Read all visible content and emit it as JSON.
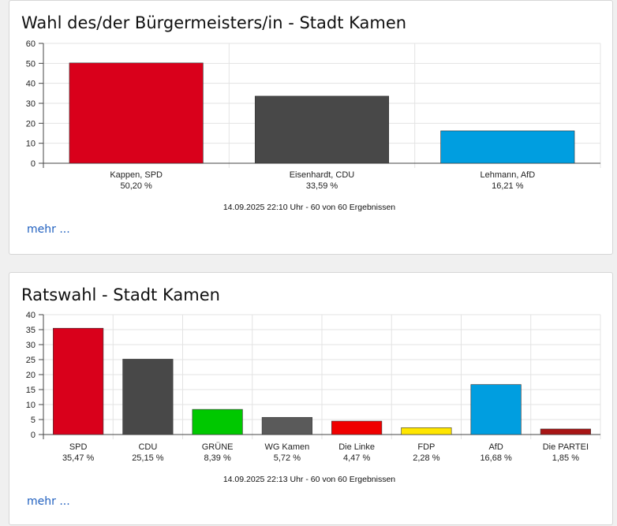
{
  "mayor": {
    "title": "Wahl des/der Bürgermeisters/in - Stadt Kamen",
    "more_label": "mehr ...",
    "timestamp": "14.09.2025 22:10 Uhr - 60 von 60 Ergebnissen"
  },
  "council": {
    "title": "Ratswahl - Stadt Kamen",
    "more_label": "mehr ...",
    "timestamp": "14.09.2025 22:13 Uhr - 60 von 60 Ergebnissen"
  },
  "chart_data": [
    {
      "type": "bar",
      "title": "Wahl des/der Bürgermeisters/in - Stadt Kamen",
      "categories": [
        "Kappen, SPD",
        "Eisenhardt, CDU",
        "Lehmann, AfD"
      ],
      "values": [
        50.2,
        33.59,
        16.21
      ],
      "value_labels": [
        "50,20 %",
        "33,59 %",
        "16,21 %"
      ],
      "colors": [
        "#d9001b",
        "#484848",
        "#009ee0"
      ],
      "ylim": [
        0,
        60
      ],
      "yticks": [
        0,
        10,
        20,
        30,
        40,
        50,
        60
      ],
      "grid": true,
      "note": "14.09.2025 22:10 Uhr - 60 von 60 Ergebnissen"
    },
    {
      "type": "bar",
      "title": "Ratswahl - Stadt Kamen",
      "categories": [
        "SPD",
        "CDU",
        "GRÜNE",
        "WG Kamen",
        "Die Linke",
        "FDP",
        "AfD",
        "Die PARTEI"
      ],
      "values": [
        35.47,
        25.15,
        8.39,
        5.72,
        4.47,
        2.28,
        16.68,
        1.85
      ],
      "value_labels": [
        "35,47 %",
        "25,15 %",
        "8,39 %",
        "5,72 %",
        "4,47 %",
        "2,28 %",
        "16,68 %",
        "1,85 %"
      ],
      "colors": [
        "#d9001b",
        "#484848",
        "#00c800",
        "#5a5a5a",
        "#f00000",
        "#ffe600",
        "#009ee0",
        "#a81515"
      ],
      "ylim": [
        0,
        40
      ],
      "yticks": [
        0,
        5,
        10,
        15,
        20,
        25,
        30,
        35,
        40
      ],
      "grid": true,
      "note": "14.09.2025 22:13 Uhr - 60 von 60 Ergebnissen"
    }
  ]
}
